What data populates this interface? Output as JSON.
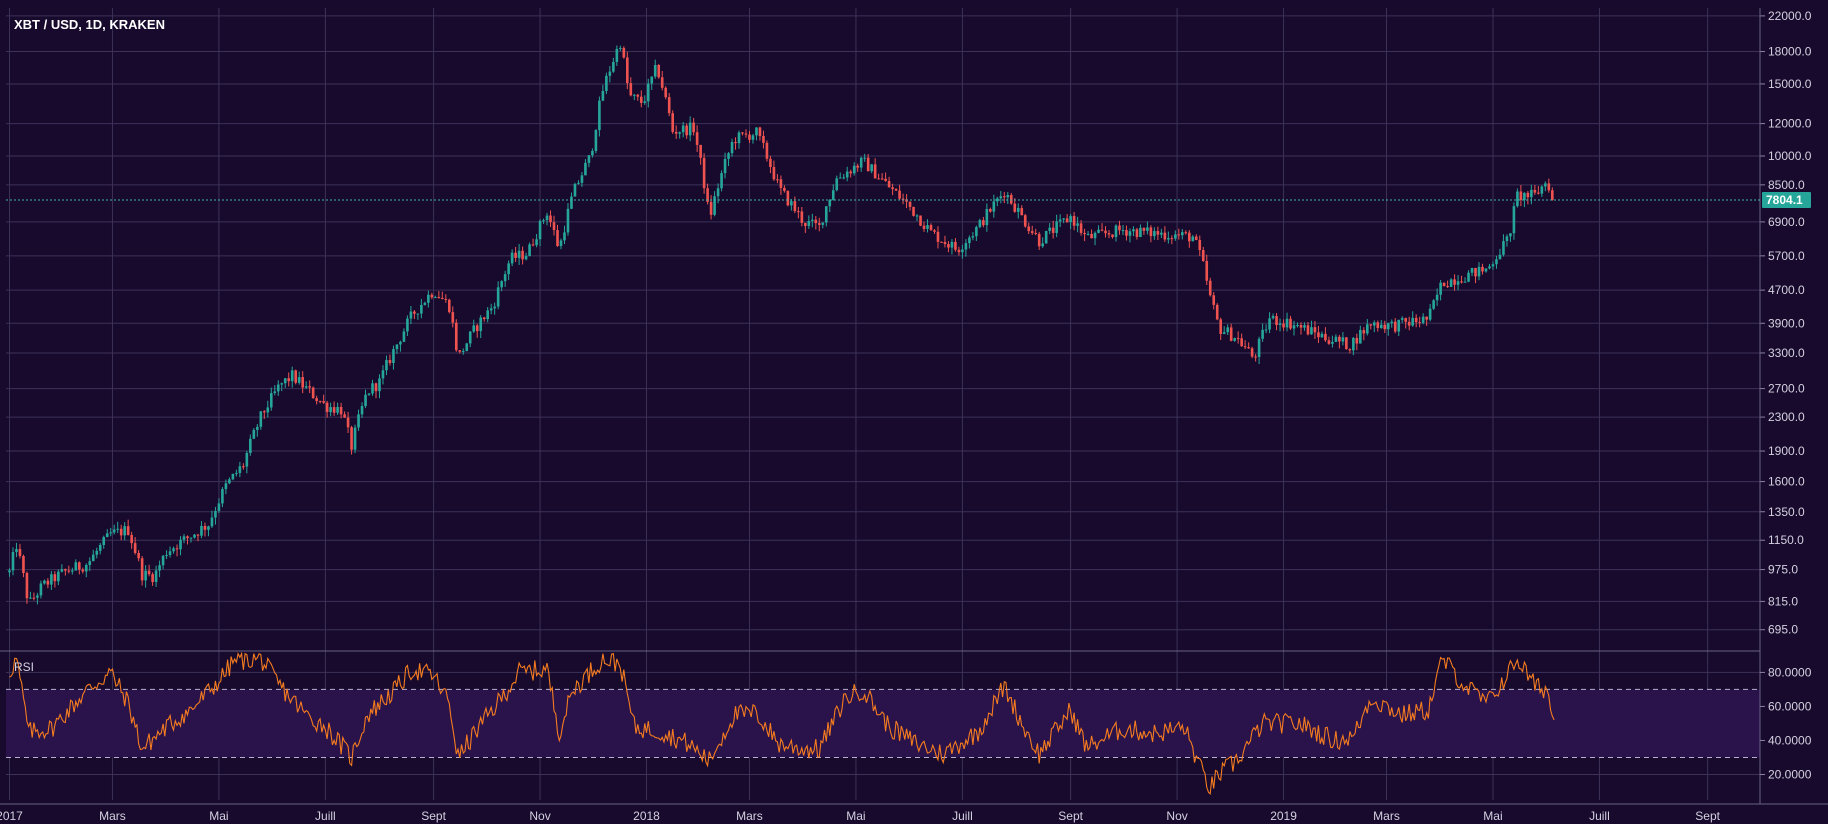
{
  "title": "XBT / USD, 1D, KRAKEN",
  "colors": {
    "background": "#170a2c",
    "grid": "#3c3258",
    "up": "#26a69a",
    "down": "#ef5350",
    "rsi_line": "#f57c20",
    "rsi_band": "#2a124a",
    "price_line": "#3fb6ad",
    "price_badge": "#26a69a"
  },
  "current_price": "7804.1",
  "chart_data": [
    {
      "type": "candlestick",
      "title": "XBT / USD, 1D, KRAKEN",
      "scale": "log",
      "ylim": [
        620,
        23000
      ],
      "x_tick_labels": [
        "2017",
        "Mars",
        "Mai",
        "Juill",
        "Sept",
        "Nov",
        "2018",
        "Mars",
        "Mai",
        "Juill",
        "Sept",
        "Nov",
        "2019",
        "Mars",
        "Mai",
        "Juill",
        "Sept"
      ],
      "y_tick_labels": [
        "22000.0",
        "18000.0",
        "15000.0",
        "12000.0",
        "10000.0",
        "8500.0",
        "6900.0",
        "5700.0",
        "4700.0",
        "3900.0",
        "3300.0",
        "2700.0",
        "2300.0",
        "1900.0",
        "1600.0",
        "1350.0",
        "1150.0",
        "975.0",
        "815.0",
        "695.0"
      ],
      "y_tick_values": [
        22000,
        18000,
        15000,
        12000,
        10000,
        8500,
        6900,
        5700,
        4700,
        3900,
        3300,
        2700,
        2300,
        1900,
        1600,
        1350,
        1150,
        975,
        815,
        695
      ],
      "last_price": 7804.1,
      "close_path": [
        [
          "2017-01-01",
          960
        ],
        [
          "2017-01-05",
          1120
        ],
        [
          "2017-01-12",
          800
        ],
        [
          "2017-01-20",
          890
        ],
        [
          "2017-02-01",
          960
        ],
        [
          "2017-02-15",
          1010
        ],
        [
          "2017-02-28",
          1190
        ],
        [
          "2017-03-10",
          1220
        ],
        [
          "2017-03-18",
          950
        ],
        [
          "2017-03-25",
          940
        ],
        [
          "2017-04-01",
          1080
        ],
        [
          "2017-04-15",
          1180
        ],
        [
          "2017-04-25",
          1260
        ],
        [
          "2017-05-05",
          1560
        ],
        [
          "2017-05-15",
          1760
        ],
        [
          "2017-05-25",
          2300
        ],
        [
          "2017-06-05",
          2750
        ],
        [
          "2017-06-12",
          2900
        ],
        [
          "2017-06-20",
          2700
        ],
        [
          "2017-07-01",
          2450
        ],
        [
          "2017-07-10",
          2400
        ],
        [
          "2017-07-16",
          1950
        ],
        [
          "2017-07-25",
          2650
        ],
        [
          "2017-08-01",
          2800
        ],
        [
          "2017-08-10",
          3400
        ],
        [
          "2017-08-20",
          4100
        ],
        [
          "2017-09-01",
          4700
        ],
        [
          "2017-09-10",
          4300
        ],
        [
          "2017-09-15",
          3200
        ],
        [
          "2017-09-25",
          3800
        ],
        [
          "2017-10-05",
          4300
        ],
        [
          "2017-10-15",
          5600
        ],
        [
          "2017-10-25",
          5800
        ],
        [
          "2017-11-05",
          7300
        ],
        [
          "2017-11-12",
          5900
        ],
        [
          "2017-11-20",
          8100
        ],
        [
          "2017-11-30",
          10000
        ],
        [
          "2017-12-07",
          14500
        ],
        [
          "2017-12-17",
          19000
        ],
        [
          "2017-12-22",
          14000
        ],
        [
          "2017-12-30",
          13500
        ],
        [
          "2018-01-07",
          16500
        ],
        [
          "2018-01-16",
          11500
        ],
        [
          "2018-01-28",
          11700
        ],
        [
          "2018-02-06",
          7000
        ],
        [
          "2018-02-20",
          11000
        ],
        [
          "2018-03-05",
          11400
        ],
        [
          "2018-03-18",
          8300
        ],
        [
          "2018-04-01",
          6900
        ],
        [
          "2018-04-10",
          6700
        ],
        [
          "2018-04-20",
          8800
        ],
        [
          "2018-05-05",
          9700
        ],
        [
          "2018-05-20",
          8400
        ],
        [
          "2018-06-01",
          7500
        ],
        [
          "2018-06-13",
          6500
        ],
        [
          "2018-06-28",
          5900
        ],
        [
          "2018-07-10",
          6700
        ],
        [
          "2018-07-25",
          8200
        ],
        [
          "2018-08-05",
          7000
        ],
        [
          "2018-08-14",
          6200
        ],
        [
          "2018-09-01",
          7100
        ],
        [
          "2018-09-10",
          6300
        ],
        [
          "2018-10-01",
          6600
        ],
        [
          "2018-10-15",
          6500
        ],
        [
          "2018-11-01",
          6400
        ],
        [
          "2018-11-10",
          6350
        ],
        [
          "2018-11-15",
          5600
        ],
        [
          "2018-11-20",
          4500
        ],
        [
          "2018-11-25",
          3800
        ],
        [
          "2018-12-05",
          3600
        ],
        [
          "2018-12-15",
          3200
        ],
        [
          "2018-12-24",
          4000
        ],
        [
          "2019-01-05",
          3900
        ],
        [
          "2019-01-25",
          3600
        ],
        [
          "2019-02-08",
          3450
        ],
        [
          "2019-02-20",
          3900
        ],
        [
          "2019-03-05",
          3850
        ],
        [
          "2019-03-25",
          4000
        ],
        [
          "2019-04-02",
          4900
        ],
        [
          "2019-04-15",
          5100
        ],
        [
          "2019-04-28",
          5300
        ],
        [
          "2019-05-10",
          6300
        ],
        [
          "2019-05-15",
          8000
        ],
        [
          "2019-05-25",
          8000
        ],
        [
          "2019-06-01",
          8700
        ],
        [
          "2019-06-05",
          7804
        ]
      ],
      "rsi": {
        "label": "RSI",
        "ylim": [
          5,
          92
        ],
        "y_tick_labels": [
          "80.0000",
          "60.0000",
          "40.0000",
          "20.0000"
        ],
        "y_tick_values": [
          80,
          60,
          40,
          20
        ],
        "bands": [
          70,
          30
        ],
        "path": [
          [
            "2017-01-01",
            80
          ],
          [
            "2017-01-05",
            88
          ],
          [
            "2017-01-12",
            45
          ],
          [
            "2017-01-25",
            47
          ],
          [
            "2017-02-15",
            70
          ],
          [
            "2017-02-28",
            80
          ],
          [
            "2017-03-10",
            62
          ],
          [
            "2017-03-18",
            35
          ],
          [
            "2017-04-01",
            48
          ],
          [
            "2017-04-15",
            58
          ],
          [
            "2017-05-01",
            75
          ],
          [
            "2017-05-10",
            87
          ],
          [
            "2017-05-25",
            88
          ],
          [
            "2017-06-05",
            72
          ],
          [
            "2017-06-20",
            55
          ],
          [
            "2017-07-01",
            48
          ],
          [
            "2017-07-16",
            30
          ],
          [
            "2017-07-25",
            55
          ],
          [
            "2017-08-10",
            70
          ],
          [
            "2017-08-20",
            82
          ],
          [
            "2017-09-01",
            78
          ],
          [
            "2017-09-10",
            62
          ],
          [
            "2017-09-15",
            30
          ],
          [
            "2017-09-25",
            45
          ],
          [
            "2017-10-10",
            65
          ],
          [
            "2017-10-20",
            80
          ],
          [
            "2017-11-05",
            82
          ],
          [
            "2017-11-12",
            45
          ],
          [
            "2017-11-20",
            70
          ],
          [
            "2017-12-07",
            88
          ],
          [
            "2017-12-17",
            85
          ],
          [
            "2017-12-25",
            48
          ],
          [
            "2018-01-10",
            45
          ],
          [
            "2018-01-25",
            38
          ],
          [
            "2018-02-06",
            28
          ],
          [
            "2018-02-20",
            55
          ],
          [
            "2018-03-05",
            56
          ],
          [
            "2018-03-18",
            38
          ],
          [
            "2018-04-01",
            35
          ],
          [
            "2018-04-10",
            35
          ],
          [
            "2018-04-25",
            65
          ],
          [
            "2018-05-05",
            70
          ],
          [
            "2018-05-20",
            48
          ],
          [
            "2018-06-05",
            38
          ],
          [
            "2018-06-20",
            32
          ],
          [
            "2018-07-10",
            45
          ],
          [
            "2018-07-25",
            72
          ],
          [
            "2018-08-05",
            48
          ],
          [
            "2018-08-14",
            32
          ],
          [
            "2018-09-01",
            58
          ],
          [
            "2018-09-10",
            36
          ],
          [
            "2018-10-01",
            47
          ],
          [
            "2018-10-20",
            44
          ],
          [
            "2018-11-05",
            48
          ],
          [
            "2018-11-15",
            22
          ],
          [
            "2018-11-20",
            12
          ],
          [
            "2018-11-25",
            20
          ],
          [
            "2018-12-05",
            28
          ],
          [
            "2018-12-20",
            50
          ],
          [
            "2019-01-10",
            50
          ],
          [
            "2019-01-30",
            40
          ],
          [
            "2019-02-10",
            42
          ],
          [
            "2019-02-20",
            65
          ],
          [
            "2019-03-10",
            55
          ],
          [
            "2019-03-25",
            58
          ],
          [
            "2019-04-02",
            88
          ],
          [
            "2019-04-15",
            72
          ],
          [
            "2019-04-28",
            62
          ],
          [
            "2019-05-10",
            80
          ],
          [
            "2019-05-15",
            88
          ],
          [
            "2019-05-25",
            72
          ],
          [
            "2019-06-01",
            70
          ],
          [
            "2019-06-05",
            50
          ]
        ]
      }
    }
  ]
}
